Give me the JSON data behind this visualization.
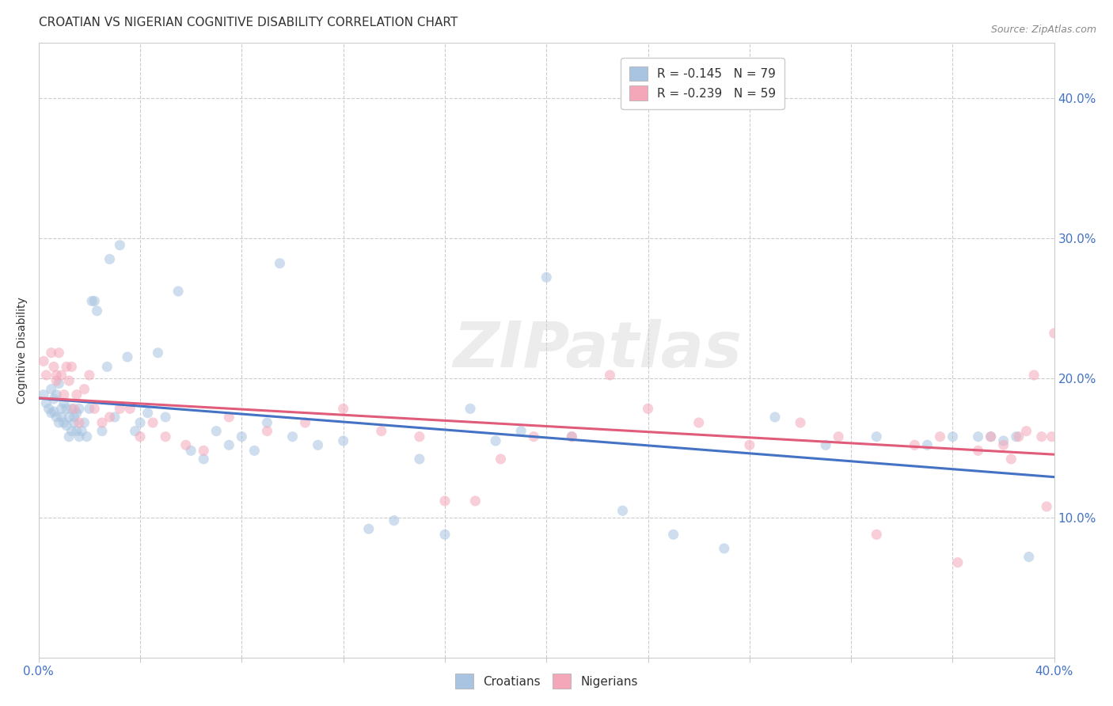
{
  "title": "CROATIAN VS NIGERIAN COGNITIVE DISABILITY CORRELATION CHART",
  "source": "Source: ZipAtlas.com",
  "ylabel": "Cognitive Disability",
  "xlim": [
    0.0,
    0.4
  ],
  "ylim": [
    0.0,
    0.44
  ],
  "xticks": [
    0.0,
    0.04,
    0.08,
    0.12,
    0.16,
    0.2,
    0.24,
    0.28,
    0.32,
    0.36,
    0.4
  ],
  "xtick_labels": [
    "0.0%",
    "",
    "",
    "",
    "",
    "",
    "",
    "",
    "",
    "",
    "40.0%"
  ],
  "yticks_right": [
    0.1,
    0.2,
    0.3,
    0.4
  ],
  "ytick_labels_right": [
    "10.0%",
    "20.0%",
    "30.0%",
    "40.0%"
  ],
  "croatian_color": "#a8c4e0",
  "nigerian_color": "#f4a7b9",
  "croatian_line_color": "#4472c4",
  "nigerian_line_color": "#e05c7a",
  "background_color": "#ffffff",
  "grid_color": "#cccccc",
  "watermark": "ZIPatlas",
  "legend_R_croatian": "R = -0.145",
  "legend_N_croatian": "N = 79",
  "legend_R_nigerian": "R = -0.239",
  "legend_N_nigerian": "N = 59",
  "croatian_x": [
    0.002,
    0.003,
    0.004,
    0.005,
    0.005,
    0.006,
    0.006,
    0.007,
    0.007,
    0.008,
    0.008,
    0.009,
    0.009,
    0.01,
    0.01,
    0.011,
    0.011,
    0.012,
    0.012,
    0.013,
    0.013,
    0.014,
    0.014,
    0.015,
    0.015,
    0.016,
    0.016,
    0.017,
    0.018,
    0.019,
    0.02,
    0.021,
    0.022,
    0.023,
    0.025,
    0.027,
    0.028,
    0.03,
    0.032,
    0.035,
    0.038,
    0.04,
    0.043,
    0.047,
    0.05,
    0.055,
    0.06,
    0.065,
    0.07,
    0.075,
    0.08,
    0.085,
    0.09,
    0.095,
    0.1,
    0.11,
    0.12,
    0.13,
    0.14,
    0.15,
    0.16,
    0.17,
    0.18,
    0.19,
    0.2,
    0.21,
    0.23,
    0.25,
    0.27,
    0.29,
    0.31,
    0.33,
    0.35,
    0.36,
    0.37,
    0.375,
    0.38,
    0.385,
    0.39
  ],
  "croatian_y": [
    0.188,
    0.182,
    0.178,
    0.192,
    0.175,
    0.185,
    0.176,
    0.172,
    0.188,
    0.196,
    0.168,
    0.178,
    0.172,
    0.168,
    0.182,
    0.166,
    0.178,
    0.158,
    0.172,
    0.178,
    0.162,
    0.168,
    0.172,
    0.175,
    0.162,
    0.158,
    0.178,
    0.162,
    0.168,
    0.158,
    0.178,
    0.255,
    0.255,
    0.248,
    0.162,
    0.208,
    0.285,
    0.172,
    0.295,
    0.215,
    0.162,
    0.168,
    0.175,
    0.218,
    0.172,
    0.262,
    0.148,
    0.142,
    0.162,
    0.152,
    0.158,
    0.148,
    0.168,
    0.282,
    0.158,
    0.152,
    0.155,
    0.092,
    0.098,
    0.142,
    0.088,
    0.178,
    0.155,
    0.162,
    0.272,
    0.158,
    0.105,
    0.088,
    0.078,
    0.172,
    0.152,
    0.158,
    0.152,
    0.158,
    0.158,
    0.158,
    0.155,
    0.158,
    0.072
  ],
  "nigerian_x": [
    0.002,
    0.003,
    0.005,
    0.006,
    0.007,
    0.007,
    0.008,
    0.009,
    0.01,
    0.011,
    0.012,
    0.013,
    0.014,
    0.015,
    0.016,
    0.018,
    0.02,
    0.022,
    0.025,
    0.028,
    0.032,
    0.036,
    0.04,
    0.045,
    0.05,
    0.058,
    0.065,
    0.075,
    0.09,
    0.105,
    0.12,
    0.135,
    0.15,
    0.16,
    0.172,
    0.182,
    0.195,
    0.21,
    0.225,
    0.24,
    0.26,
    0.28,
    0.3,
    0.315,
    0.33,
    0.345,
    0.355,
    0.362,
    0.37,
    0.375,
    0.38,
    0.383,
    0.386,
    0.389,
    0.392,
    0.395,
    0.397,
    0.399,
    0.4
  ],
  "nigerian_y": [
    0.212,
    0.202,
    0.218,
    0.208,
    0.198,
    0.202,
    0.218,
    0.202,
    0.188,
    0.208,
    0.198,
    0.208,
    0.178,
    0.188,
    0.168,
    0.192,
    0.202,
    0.178,
    0.168,
    0.172,
    0.178,
    0.178,
    0.158,
    0.168,
    0.158,
    0.152,
    0.148,
    0.172,
    0.162,
    0.168,
    0.178,
    0.162,
    0.158,
    0.112,
    0.112,
    0.142,
    0.158,
    0.158,
    0.202,
    0.178,
    0.168,
    0.152,
    0.168,
    0.158,
    0.088,
    0.152,
    0.158,
    0.068,
    0.148,
    0.158,
    0.152,
    0.142,
    0.158,
    0.162,
    0.202,
    0.158,
    0.108,
    0.158,
    0.232
  ],
  "title_fontsize": 11,
  "axis_label_fontsize": 10,
  "tick_fontsize": 11,
  "legend_fontsize": 11,
  "marker_size": 90,
  "marker_alpha": 0.55,
  "line_width": 2.2
}
